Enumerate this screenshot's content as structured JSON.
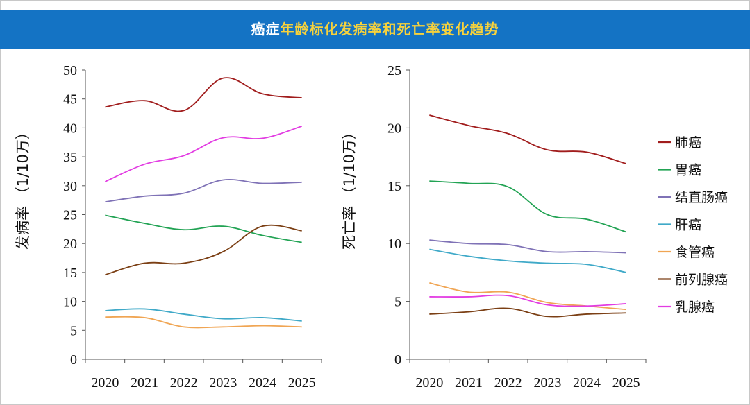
{
  "header": {
    "title_part1": "癌症",
    "title_part2": "年龄标化发病率和死亡率变化趋势",
    "accent_white": "#ffffff",
    "accent_yellow": "#f7d23c",
    "banner_color": "#1473c4"
  },
  "legend": [
    {
      "name": "肺癌",
      "color": "#a11d1d"
    },
    {
      "name": "胃癌",
      "color": "#22a354"
    },
    {
      "name": "结直肠癌",
      "color": "#7f72b6"
    },
    {
      "name": "肝癌",
      "color": "#3fa9c8"
    },
    {
      "name": "食管癌",
      "color": "#f0a553"
    },
    {
      "name": "前列腺癌",
      "color": "#7b3f14"
    },
    {
      "name": "乳腺癌",
      "color": "#e23ce2"
    }
  ],
  "chart_data": [
    {
      "type": "line",
      "title": "",
      "xlabel": "",
      "ylabel": "发病率 （1/10万）",
      "categories": [
        "2020",
        "2021",
        "2022",
        "2023",
        "2024",
        "2025"
      ],
      "ylim": [
        0,
        50
      ],
      "yticks": [
        0,
        5,
        10,
        15,
        20,
        25,
        30,
        35,
        40,
        45,
        50
      ],
      "series": [
        {
          "name": "肺癌",
          "values": [
            43.6,
            44.7,
            43.0,
            48.6,
            45.9,
            45.2
          ]
        },
        {
          "name": "胃癌",
          "values": [
            24.9,
            23.5,
            22.4,
            23.0,
            21.4,
            20.2
          ]
        },
        {
          "name": "结直肠癌",
          "values": [
            27.2,
            28.2,
            28.7,
            31.0,
            30.4,
            30.6
          ]
        },
        {
          "name": "肝癌",
          "values": [
            8.4,
            8.7,
            7.8,
            7.0,
            7.2,
            6.6
          ]
        },
        {
          "name": "食管癌",
          "values": [
            7.3,
            7.2,
            5.6,
            5.6,
            5.8,
            5.6
          ]
        },
        {
          "name": "前列腺癌",
          "values": [
            14.6,
            16.6,
            16.6,
            18.6,
            23.0,
            22.2
          ]
        },
        {
          "name": "乳腺癌",
          "values": [
            30.7,
            33.7,
            35.2,
            38.3,
            38.2,
            40.3
          ]
        }
      ]
    },
    {
      "type": "line",
      "title": "",
      "xlabel": "",
      "ylabel": "死亡率 （1/10万）",
      "categories": [
        "2020",
        "2021",
        "2022",
        "2023",
        "2024",
        "2025"
      ],
      "ylim": [
        0,
        25
      ],
      "yticks": [
        0,
        5,
        10,
        15,
        20,
        25
      ],
      "series": [
        {
          "name": "肺癌",
          "values": [
            21.1,
            20.2,
            19.5,
            18.1,
            17.9,
            16.9
          ]
        },
        {
          "name": "胃癌",
          "values": [
            15.4,
            15.2,
            14.9,
            12.5,
            12.1,
            11.0
          ]
        },
        {
          "name": "结直肠癌",
          "values": [
            10.3,
            10.0,
            9.9,
            9.3,
            9.3,
            9.2
          ]
        },
        {
          "name": "肝癌",
          "values": [
            9.5,
            8.9,
            8.5,
            8.3,
            8.2,
            7.5
          ]
        },
        {
          "name": "食管癌",
          "values": [
            6.6,
            5.8,
            5.8,
            4.9,
            4.6,
            4.3
          ]
        },
        {
          "name": "前列腺癌",
          "values": [
            3.9,
            4.1,
            4.4,
            3.7,
            3.9,
            4.0
          ]
        },
        {
          "name": "乳腺癌",
          "values": [
            5.4,
            5.4,
            5.5,
            4.7,
            4.6,
            4.8
          ]
        }
      ]
    }
  ]
}
